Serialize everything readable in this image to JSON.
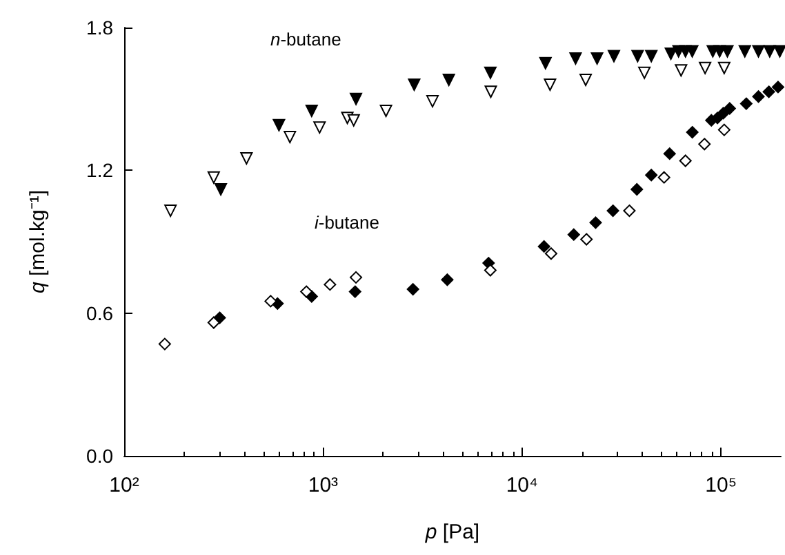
{
  "chart_data": {
    "type": "scatter",
    "xlabel": "p [Pa]",
    "ylabel": "q [mol.kg⁻¹]",
    "log": "x",
    "grid": false,
    "xlim": [
      100,
      200000
    ],
    "ylim": [
      0,
      1.8
    ],
    "xticks": [
      {
        "value": 100,
        "label": "10²"
      },
      {
        "value": 1000,
        "label": "10³"
      },
      {
        "value": 10000,
        "label": "10⁴"
      },
      {
        "value": 100000,
        "label": "10⁵"
      }
    ],
    "yticks": [
      {
        "value": 0,
        "label": "0.0"
      },
      {
        "value": 0.6,
        "label": "0.6"
      },
      {
        "value": 1.2,
        "label": "1.2"
      },
      {
        "value": 1.8,
        "label": "1.8"
      }
    ],
    "annotations": [
      "n-butane",
      "i-butane"
    ],
    "series": [
      {
        "color": "#000000",
        "marker": "triangle-down",
        "x": [
          306,
          600,
          876,
          1463,
          2870,
          4286,
          6933,
          13120,
          18580,
          23830,
          28970,
          38100,
          44650,
          56000,
          61200,
          66300,
          71700,
          91000,
          98500,
          107700,
          131800,
          154300,
          175800,
          197600
        ],
        "values": [
          1.12,
          1.39,
          1.45,
          1.5,
          1.56,
          1.58,
          1.61,
          1.65,
          1.67,
          1.67,
          1.68,
          1.68,
          1.68,
          1.69,
          1.7,
          1.7,
          1.7,
          1.7,
          1.7,
          1.7,
          1.7,
          1.7,
          1.7,
          1.7
        ]
      },
      {
        "color": "#000000",
        "marker": "triangle-down-open",
        "x": [
          171,
          282,
          412,
          681,
          960,
          1324,
          1425,
          2071,
          3548,
          6966,
          13830,
          20890,
          41200,
          63000,
          83200,
          103800
        ],
        "values": [
          1.03,
          1.17,
          1.25,
          1.34,
          1.38,
          1.42,
          1.41,
          1.45,
          1.49,
          1.53,
          1.56,
          1.58,
          1.61,
          1.62,
          1.63,
          1.63
        ]
      },
      {
        "color": "#000000",
        "marker": "diamond",
        "x": [
          302,
          590,
          876,
          1448,
          2830,
          4210,
          6790,
          12900,
          18200,
          23440,
          28640,
          37780,
          44650,
          55200,
          71760,
          89500,
          96000,
          102700,
          110600,
          134000,
          154300,
          174000,
          193600
        ],
        "values": [
          0.58,
          0.64,
          0.67,
          0.69,
          0.7,
          0.74,
          0.81,
          0.88,
          0.93,
          0.98,
          1.03,
          1.12,
          1.18,
          1.27,
          1.36,
          1.41,
          1.42,
          1.44,
          1.46,
          1.48,
          1.51,
          1.53,
          1.55
        ]
      },
      {
        "color": "#000000",
        "marker": "diamond-open",
        "x": [
          160,
          282,
          545,
          824,
          1083,
          1463,
          6930,
          14000,
          21080,
          34650,
          51760,
          66300,
          82600,
          103800
        ],
        "values": [
          0.47,
          0.56,
          0.65,
          0.69,
          0.72,
          0.75,
          0.78,
          0.85,
          0.91,
          1.03,
          1.17,
          1.24,
          1.31,
          1.37
        ]
      }
    ]
  }
}
